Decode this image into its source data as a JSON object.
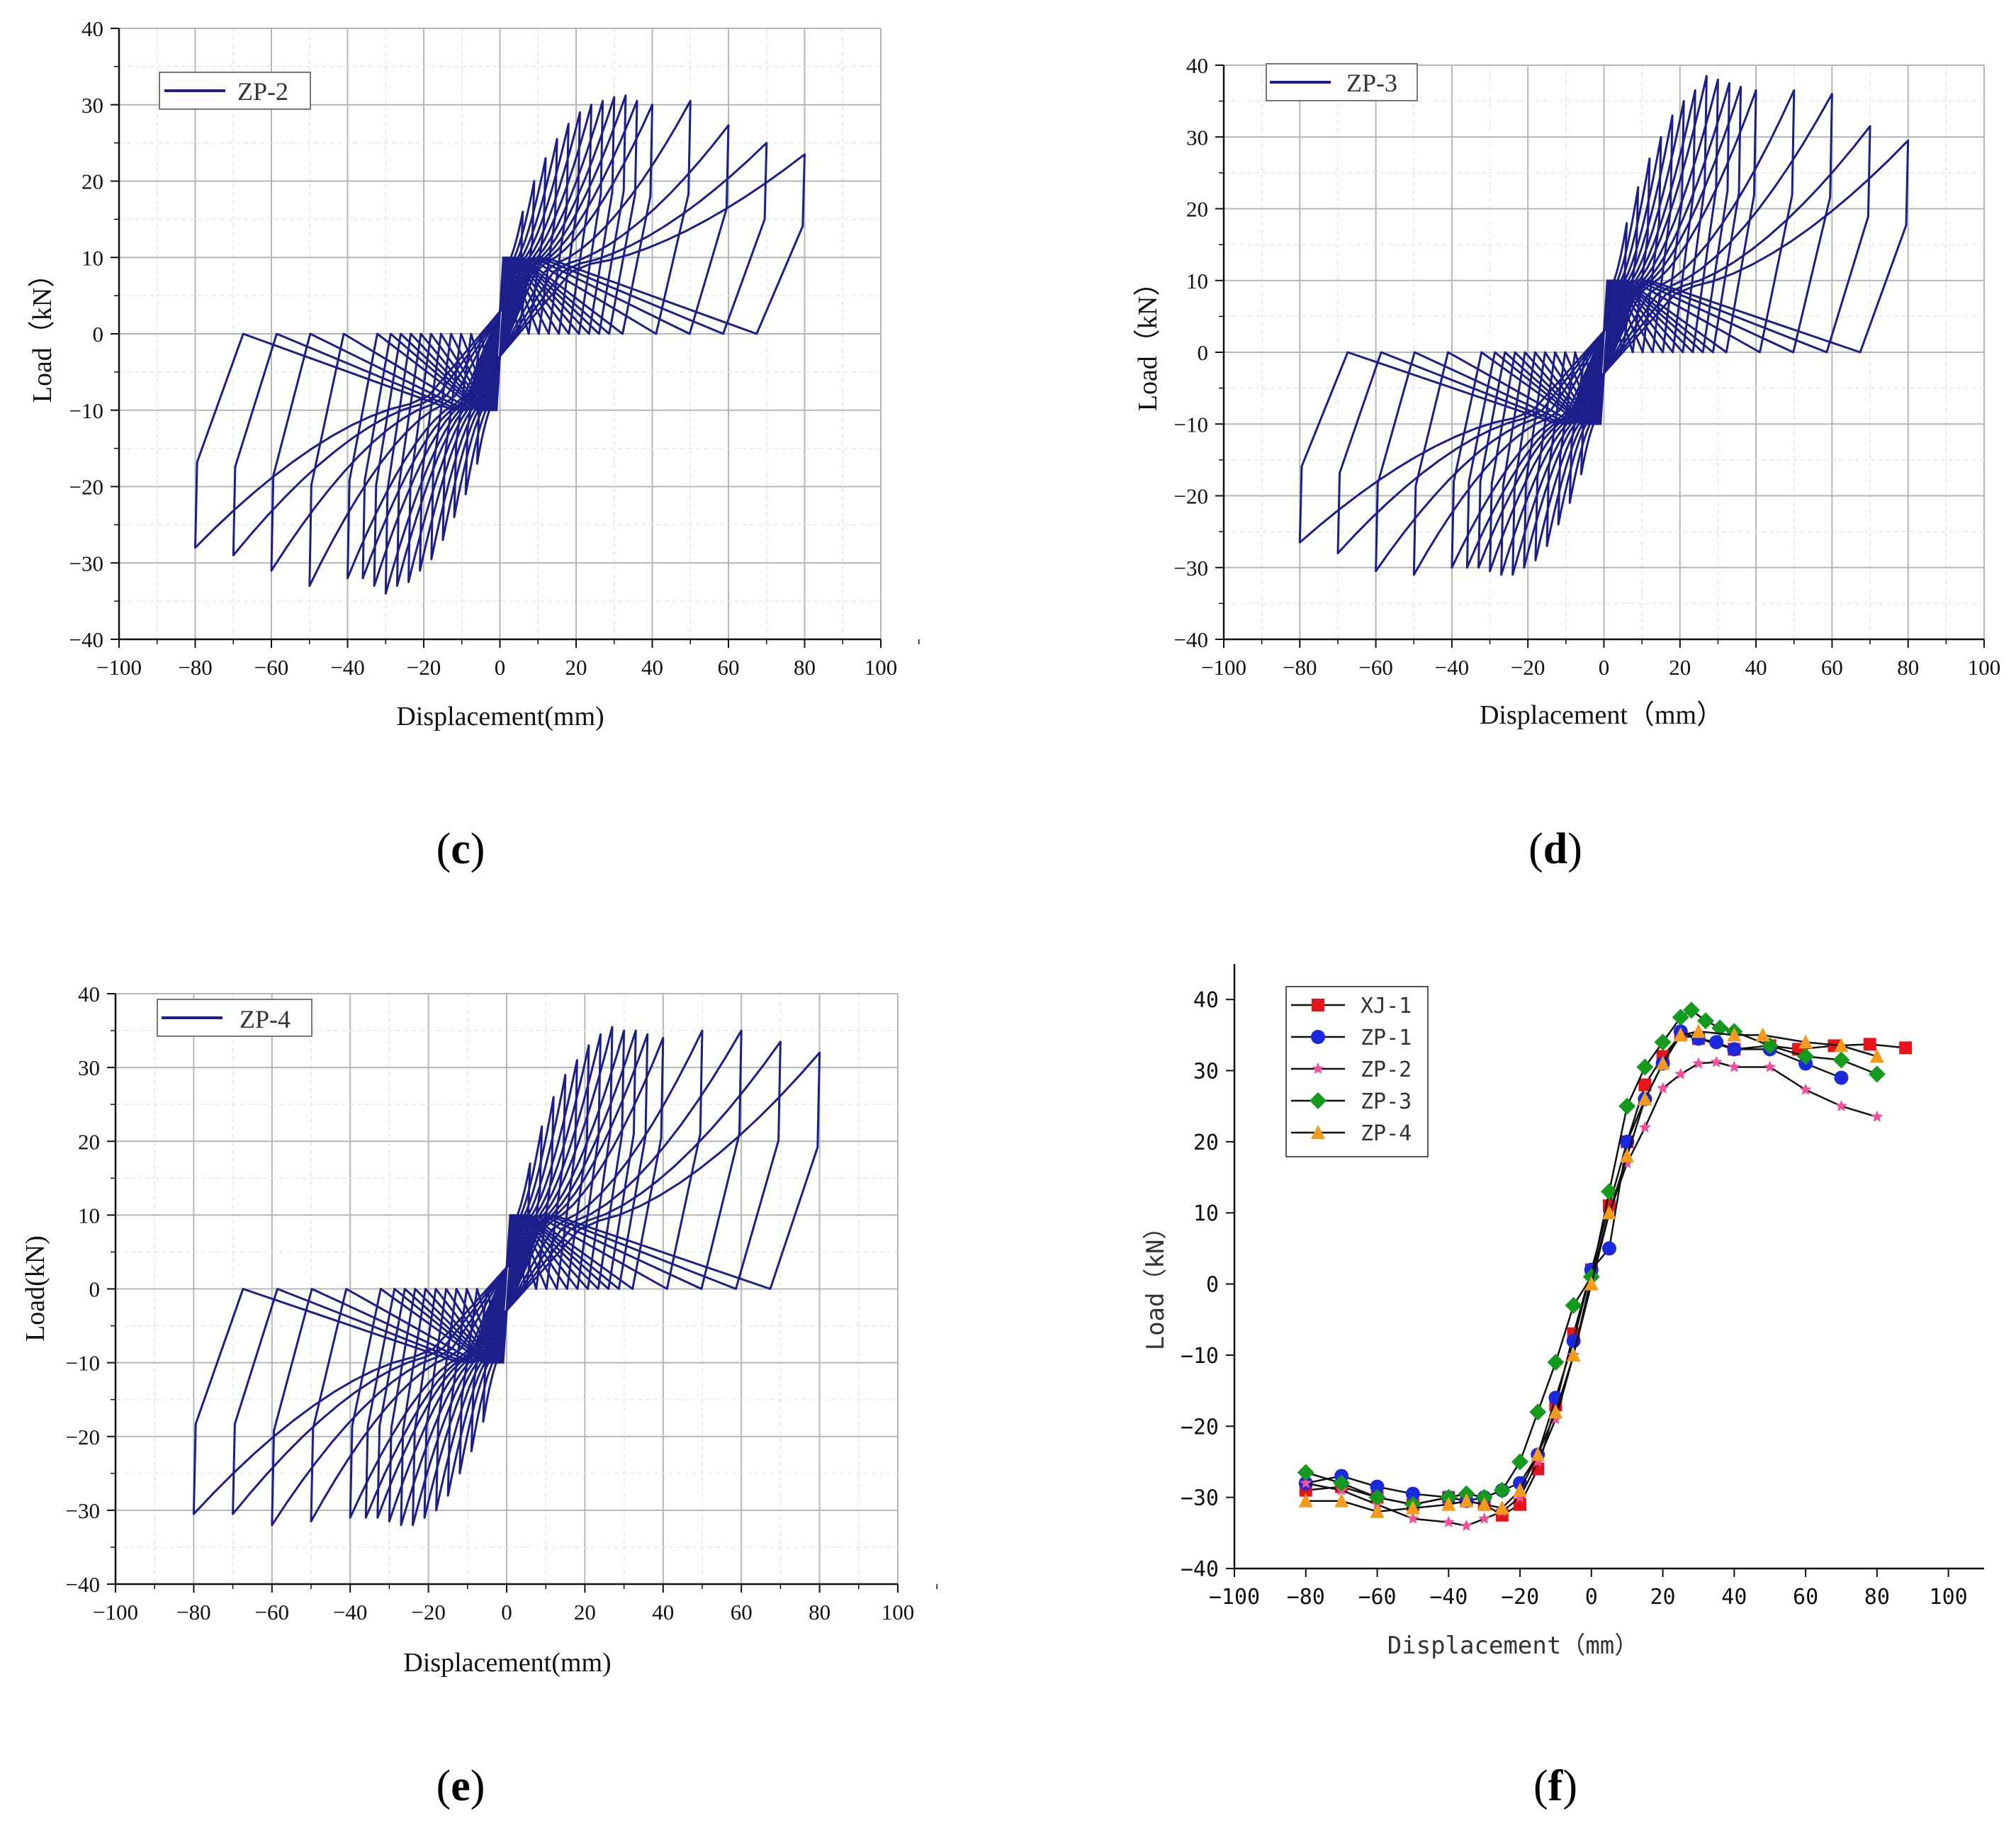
{
  "chart_data": [
    {
      "id": "c",
      "type": "line",
      "panel_label": "c",
      "title": "",
      "xlabel": "Displacement(mm)",
      "ylabel": "Load（kN）",
      "xlim": [
        -100,
        100
      ],
      "ylim": [
        -40,
        40
      ],
      "xticks": [
        -100,
        -80,
        -60,
        -40,
        -20,
        0,
        20,
        40,
        60,
        80,
        100
      ],
      "yticks": [
        -40,
        -30,
        -20,
        -10,
        0,
        10,
        20,
        30,
        40
      ],
      "grid": true,
      "legend_position": "top-left",
      "series": [
        {
          "name": "ZP-2",
          "color": "#1c1f8a"
        }
      ],
      "hysteresis": {
        "amplitudes": [
          6,
          9,
          12,
          15,
          18,
          21,
          24,
          27,
          30,
          33,
          36,
          40,
          50,
          60,
          70,
          80
        ],
        "pos_peaks": [
          16,
          20,
          23,
          25.5,
          27.5,
          29,
          30,
          30.5,
          31,
          31.2,
          30.5,
          30,
          30.5,
          27.3,
          25,
          23.5
        ],
        "neg_peaks": [
          -17,
          -21,
          -24,
          -27,
          -29.5,
          -31,
          -32.5,
          -33,
          -34,
          -33,
          -32,
          -32,
          -33,
          -31,
          -29,
          -28
        ],
        "pos_unload": 10,
        "neg_unload": -10
      }
    },
    {
      "id": "d",
      "type": "line",
      "panel_label": "d",
      "title": "",
      "xlabel": "Displacement（mm）",
      "ylabel": "Load（kN）",
      "xlim": [
        -100,
        100
      ],
      "ylim": [
        -40,
        40
      ],
      "xticks": [
        -100,
        -80,
        -60,
        -40,
        -20,
        0,
        20,
        40,
        60,
        80,
        100
      ],
      "yticks": [
        -40,
        -30,
        -20,
        -10,
        0,
        10,
        20,
        30,
        40
      ],
      "grid": true,
      "legend_position": "top-left",
      "series": [
        {
          "name": "ZP-3",
          "color": "#1c1f8a"
        }
      ],
      "hysteresis": {
        "amplitudes": [
          6,
          9,
          12,
          15,
          18,
          21,
          24,
          27,
          30,
          33,
          36,
          40,
          50,
          60,
          70,
          80
        ],
        "pos_peaks": [
          18,
          23,
          27,
          30,
          33,
          35,
          36.5,
          38.5,
          38,
          37.5,
          37,
          36.5,
          36.5,
          36,
          31.5,
          29.5
        ],
        "neg_peaks": [
          -17,
          -21,
          -24,
          -27,
          -29,
          -30,
          -31,
          -31,
          -30.5,
          -30,
          -30,
          -30,
          -31,
          -30.5,
          -28,
          -26.5
        ],
        "pos_unload": 10,
        "neg_unload": -10
      }
    },
    {
      "id": "e",
      "type": "line",
      "panel_label": "e",
      "title": "",
      "xlabel": "Displacement(mm)",
      "ylabel": "Load(kN)",
      "xlim": [
        -100,
        100
      ],
      "ylim": [
        -40,
        40
      ],
      "xticks": [
        -100,
        -80,
        -60,
        -40,
        -20,
        0,
        20,
        40,
        60,
        80,
        100
      ],
      "yticks": [
        -40,
        -30,
        -20,
        -10,
        0,
        10,
        20,
        30,
        40
      ],
      "grid": true,
      "legend_position": "top-left",
      "series": [
        {
          "name": "ZP-4",
          "color": "#1c1f8a"
        }
      ],
      "hysteresis": {
        "amplitudes": [
          6,
          9,
          12,
          15,
          18,
          21,
          24,
          27,
          30,
          33,
          36,
          40,
          50,
          60,
          70,
          80
        ],
        "pos_peaks": [
          17,
          22,
          26,
          29,
          31,
          33,
          34.5,
          35.5,
          35,
          35,
          34.5,
          34,
          35,
          35,
          33.5,
          32
        ],
        "neg_peaks": [
          -18,
          -22,
          -25,
          -28,
          -30,
          -31,
          -32,
          -32,
          -31.5,
          -31,
          -31,
          -31,
          -31.5,
          -32,
          -30.5,
          -30.5
        ],
        "pos_unload": 10,
        "neg_unload": -10
      }
    },
    {
      "id": "f",
      "type": "line",
      "panel_label": "f",
      "title": "",
      "xlabel": "Displacement（mm）",
      "ylabel": "Load（kN）",
      "xlim": [
        -100,
        110
      ],
      "ylim": [
        -40,
        45
      ],
      "xticks": [
        -100,
        -80,
        -60,
        -40,
        -20,
        0,
        20,
        40,
        60,
        80,
        100
      ],
      "yticks": [
        -40,
        -30,
        -20,
        -10,
        0,
        10,
        20,
        30,
        40
      ],
      "grid": false,
      "legend_position": "top-left",
      "series": [
        {
          "name": "XJ-1",
          "color": "#e8141c",
          "marker": "square",
          "x": [
            -80,
            -70,
            -60,
            -50,
            -40,
            -35,
            -30,
            -25,
            -20,
            -15,
            -10,
            -5,
            0,
            5,
            10,
            15,
            20,
            25,
            30,
            40,
            50,
            58,
            68,
            78,
            88
          ],
          "y": [
            -29,
            -28.5,
            -30,
            -31,
            -30,
            -30.5,
            -31,
            -32.5,
            -31,
            -26,
            -17,
            -7,
            2,
            11,
            20,
            28,
            32,
            35,
            34.5,
            33,
            33.5,
            33,
            33.5,
            33.7,
            33.2
          ]
        },
        {
          "name": "ZP-1",
          "color": "#1a28e0",
          "marker": "circle",
          "x": [
            -80,
            -70,
            -60,
            -50,
            -40,
            -35,
            -30,
            -25,
            -20,
            -15,
            -10,
            -5,
            0,
            5,
            10,
            15,
            20,
            25,
            30,
            35,
            40,
            50,
            60,
            70
          ],
          "y": [
            -28,
            -27,
            -28.5,
            -29.5,
            -30,
            -30.5,
            -30,
            -29,
            -28,
            -24,
            -16,
            -8,
            2,
            5,
            20,
            26,
            31,
            35.5,
            34.5,
            34,
            33,
            33,
            31,
            29
          ]
        },
        {
          "name": "ZP-2",
          "color": "#f0509a",
          "marker": "star",
          "x": [
            -80,
            -70,
            -60,
            -50,
            -40,
            -35,
            -30,
            -25,
            -20,
            -15,
            -10,
            -5,
            0,
            5,
            10,
            15,
            20,
            25,
            30,
            35,
            40,
            50,
            60,
            70,
            80
          ],
          "y": [
            -28,
            -29,
            -31,
            -33,
            -33.5,
            -34,
            -33,
            -32,
            -30,
            -25,
            -19,
            -10,
            1,
            10,
            17,
            22,
            27.5,
            29.5,
            31,
            31.2,
            30.5,
            30.5,
            27.3,
            25,
            23.5
          ]
        },
        {
          "name": "ZP-3",
          "color": "#149a1c",
          "marker": "diamond",
          "x": [
            -80,
            -70,
            -60,
            -50,
            -40,
            -35,
            -30,
            -25,
            -20,
            -15,
            -10,
            -5,
            0,
            5,
            10,
            15,
            20,
            25,
            28,
            32,
            36,
            40,
            50,
            60,
            70,
            80
          ],
          "y": [
            -26.5,
            -28,
            -30,
            -31,
            -30,
            -29.5,
            -30,
            -29,
            -25,
            -18,
            -11,
            -3,
            1,
            13,
            25,
            30.5,
            34,
            37.5,
            38.5,
            37,
            36,
            35.5,
            33.5,
            32,
            31.5,
            29.5
          ]
        },
        {
          "name": "ZP-4",
          "color": "#f49a1c",
          "marker": "triangle",
          "x": [
            -80,
            -70,
            -60,
            -50,
            -40,
            -35,
            -30,
            -25,
            -20,
            -15,
            -10,
            -5,
            0,
            5,
            10,
            15,
            20,
            25,
            30,
            40,
            48,
            60,
            70,
            80
          ],
          "y": [
            -30.5,
            -30.5,
            -32,
            -31.5,
            -31,
            -30.5,
            -31,
            -31.5,
            -29,
            -24,
            -18,
            -10,
            0,
            10,
            18,
            26,
            31,
            35,
            35.5,
            35,
            35,
            34,
            33.5,
            32
          ]
        }
      ]
    }
  ]
}
